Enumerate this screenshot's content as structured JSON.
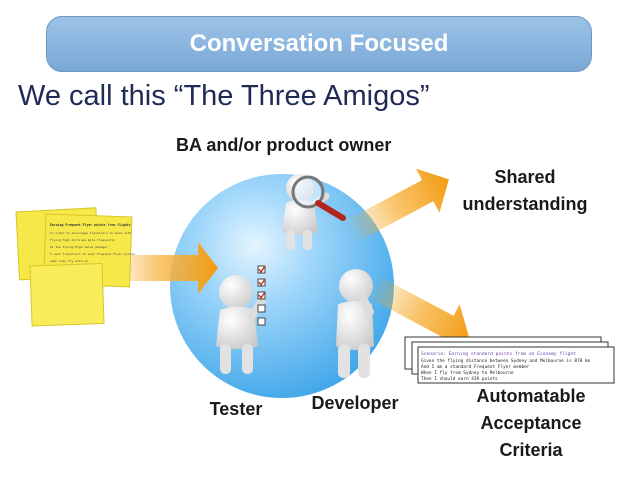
{
  "banner": {
    "title": "Conversation Focused"
  },
  "subtitle": "We call this “The Three Amigos”",
  "roles": {
    "ba": "BA and/or product owner",
    "tester": "Tester",
    "developer": "Developer"
  },
  "outputs": {
    "shared": [
      "Shared",
      "understanding"
    ],
    "criteria": [
      "Automatable",
      "Acceptance",
      "Criteria"
    ]
  },
  "colors": {
    "banner": "#8db5e0",
    "subtitle": "#1f2a55",
    "sphere": "#5ab4f0",
    "arrow": "#f5a623",
    "sticky_note": "#f7e84a",
    "figure": "#eeeeee"
  },
  "sticky_note": {
    "title": "Earning Frequent Flyer points from flights",
    "lines": [
      "In order to encourage travellers to book with",
      "Flying High Airlines more frequently",
      "As the Flying High sales manager",
      "I want travellers to earn Frequent Flyer points",
      "when they fly with us"
    ]
  },
  "scenario": {
    "title": "Scenario: Earning standard points from an Economy flight",
    "lines": [
      "Given the flying distance between Sydney and Melbourne is 878 km",
      "And I am a standard Frequent Flyer member",
      "When I fly from Sydney to Melbourne",
      "Then I should earn 439 points"
    ]
  }
}
